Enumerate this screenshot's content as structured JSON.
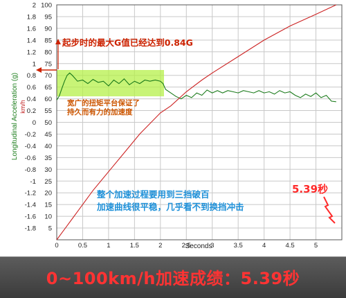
{
  "chart_data": {
    "type": "line",
    "xlabel": "Seconds",
    "ylabel_left": "Longitudinal Acceleration (g)",
    "ylabel_left2": "km/h",
    "xlim": [
      0,
      5.5
    ],
    "ylim_left": [
      -2,
      2
    ],
    "ylim_right": [
      0,
      100
    ],
    "grid": true,
    "x_ticks": [
      "0",
      "0.5",
      "1",
      "1.5",
      "2",
      "2.5",
      "3",
      "3.5",
      "4",
      "4.5",
      "5"
    ],
    "x_tick_values": [
      0,
      0.5,
      1,
      1.5,
      2,
      2.5,
      3,
      3.5,
      4,
      4.5,
      5
    ],
    "y_left_ticks": [
      "2",
      "1.8",
      "1.6",
      "1.4",
      "1.2",
      "1",
      "0.8",
      "0.6",
      "0.4",
      "0.2",
      "0",
      "-0.2",
      "-0.4",
      "-0.6",
      "-0.8",
      "-1",
      "-1.2",
      "-1.4",
      "-1.6",
      "-1.8"
    ],
    "y_left_tick_values": [
      2,
      1.8,
      1.6,
      1.4,
      1.2,
      1,
      0.8,
      0.6,
      0.4,
      0.2,
      0,
      -0.2,
      -0.4,
      -0.6,
      -0.8,
      -1,
      -1.2,
      -1.4,
      -1.6,
      -1.8
    ],
    "y_right_ticks": [
      "100",
      "95",
      "90",
      "85",
      "80",
      "75",
      "70",
      "65",
      "60",
      "55",
      "50",
      "45",
      "40",
      "35",
      "30",
      "25",
      "20",
      "15",
      "10",
      "5"
    ],
    "y_right_tick_values": [
      100,
      95,
      90,
      85,
      80,
      75,
      70,
      65,
      60,
      55,
      50,
      45,
      40,
      35,
      30,
      25,
      20,
      15,
      10,
      5
    ],
    "series": [
      {
        "axis": "left",
        "color": "#1a7a1a",
        "x": [
          0,
          0.05,
          0.1,
          0.15,
          0.2,
          0.25,
          0.3,
          0.4,
          0.5,
          0.6,
          0.7,
          0.8,
          0.9,
          1.0,
          1.1,
          1.2,
          1.3,
          1.4,
          1.5,
          1.6,
          1.7,
          1.8,
          1.9,
          2.0,
          2.05,
          2.1,
          2.2,
          2.3,
          2.4,
          2.5,
          2.6,
          2.7,
          2.8,
          2.9,
          3.0,
          3.1,
          3.2,
          3.3,
          3.4,
          3.5,
          3.6,
          3.7,
          3.8,
          3.9,
          4.0,
          4.1,
          4.2,
          4.3,
          4.4,
          4.5,
          4.6,
          4.7,
          4.8,
          4.9,
          5.0,
          5.1,
          5.2,
          5.3,
          5.39
        ],
        "values": [
          0.38,
          0.45,
          0.58,
          0.7,
          0.8,
          0.84,
          0.8,
          0.7,
          0.72,
          0.66,
          0.73,
          0.68,
          0.7,
          0.62,
          0.72,
          0.66,
          0.74,
          0.64,
          0.7,
          0.66,
          0.72,
          0.7,
          0.72,
          0.7,
          0.66,
          0.56,
          0.5,
          0.44,
          0.4,
          0.46,
          0.42,
          0.5,
          0.46,
          0.55,
          0.5,
          0.54,
          0.5,
          0.54,
          0.52,
          0.5,
          0.54,
          0.52,
          0.5,
          0.54,
          0.5,
          0.52,
          0.48,
          0.54,
          0.5,
          0.52,
          0.46,
          0.42,
          0.48,
          0.44,
          0.5,
          0.42,
          0.46,
          0.36,
          0.35
        ]
      },
      {
        "axis": "right",
        "color": "#cc2222",
        "x": [
          0,
          0.1,
          0.2,
          0.3,
          0.4,
          0.5,
          0.7,
          1.0,
          1.3,
          1.6,
          2.0,
          2.2,
          2.5,
          2.8,
          3.0,
          3.5,
          4.0,
          4.5,
          5.0,
          5.39
        ],
        "values": [
          0,
          3,
          6,
          9,
          12,
          15,
          21,
          29,
          37,
          45,
          54,
          57,
          63,
          68,
          71,
          78,
          85,
          91,
          96,
          100
        ]
      }
    ],
    "annotations": {
      "g_peak": "起步时的最大G值已经达到0.84G",
      "torque": [
        "宽广的扭矩平台保证了",
        "持久而有力的加速度"
      ],
      "summary": [
        "整个加速过程要用到三挡破百",
        "加速曲线很平稳，几乎看不到换挡冲击"
      ],
      "time": "5.39秒"
    }
  },
  "banner": {
    "text": "0~100km/h加速成绩：5.39秒"
  }
}
